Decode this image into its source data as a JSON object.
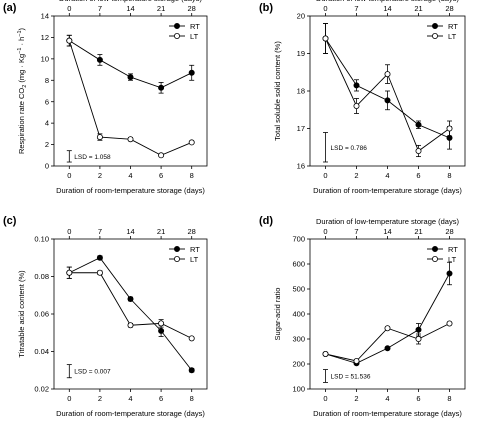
{
  "chart_data": [
    {
      "panel_label": "(a)",
      "type": "line",
      "top_xlabel": "Duration of low-temperature storage (days)",
      "top_ticks": [
        "0",
        "7",
        "14",
        "21",
        "28"
      ],
      "xlabel": "Duration of room-temperature storage (days)",
      "x_ticks": [
        "0",
        "2",
        "4",
        "6",
        "8"
      ],
      "x": [
        0,
        2,
        4,
        6,
        8
      ],
      "xlim": [
        -1,
        9
      ],
      "ylabel": "Respiration rate CO",
      "ylabel_sub": "2",
      "ylabel_unit": " (mg · Kg",
      "ylabel_sup1": "−1",
      "ylabel_mid": " · h",
      "ylabel_sup2": "−1",
      "ylabel_end": ")",
      "ylim": [
        0,
        14
      ],
      "y_ticks": [
        "0",
        "2",
        "4",
        "6",
        "8",
        "10",
        "12",
        "14"
      ],
      "y_tick_values": [
        0,
        2,
        4,
        6,
        8,
        10,
        12,
        14
      ],
      "legend_position": "top-right",
      "series": [
        {
          "name": "RT",
          "marker": "filled",
          "values": [
            11.7,
            9.9,
            8.3,
            7.3,
            8.7
          ],
          "errors": [
            0.5,
            0.5,
            0.3,
            0.5,
            0.7
          ]
        },
        {
          "name": "LT",
          "marker": "open",
          "values": [
            11.7,
            2.7,
            2.5,
            1.0,
            2.2
          ],
          "errors": [
            0.5,
            0.3,
            0.15,
            0.1,
            0.1
          ]
        }
      ],
      "lsd": {
        "label": "LSD = 1.058",
        "x": 0,
        "center": 0.9,
        "half": 0.53
      }
    },
    {
      "panel_label": "(b)",
      "type": "line",
      "top_xlabel": "Duration of low-temperature storage (days)",
      "top_ticks": [
        "0",
        "7",
        "14",
        "21",
        "28"
      ],
      "xlabel": "Duration of room-temperature storage (days)",
      "x_ticks": [
        "0",
        "2",
        "4",
        "6",
        "8"
      ],
      "x": [
        0,
        2,
        4,
        6,
        8
      ],
      "xlim": [
        -1,
        9
      ],
      "ylabel": "Total soluble solid content (%)",
      "ylim": [
        16,
        20
      ],
      "y_ticks": [
        "16",
        "17",
        "18",
        "19",
        "20"
      ],
      "y_tick_values": [
        16,
        17,
        18,
        19,
        20
      ],
      "legend_position": "top-right",
      "series": [
        {
          "name": "RT",
          "marker": "filled",
          "values": [
            19.4,
            18.15,
            17.75,
            17.1,
            16.75
          ],
          "errors": [
            0.4,
            0.15,
            0.25,
            0.1,
            0.3
          ]
        },
        {
          "name": "LT",
          "marker": "open",
          "values": [
            19.4,
            17.6,
            18.45,
            16.4,
            17.0
          ],
          "errors": [
            0.4,
            0.2,
            0.25,
            0.15,
            0.2
          ]
        }
      ],
      "lsd": {
        "label": "LSD = 0.786",
        "x": 0,
        "center": 16.5,
        "half": 0.393
      }
    },
    {
      "panel_label": "(c)",
      "type": "line",
      "top_xlabel": "",
      "top_ticks": [
        "0",
        "7",
        "14",
        "21",
        "28"
      ],
      "xlabel": "Duration of room-temperature storage (days)",
      "x_ticks": [
        "0",
        "2",
        "4",
        "6",
        "8"
      ],
      "x": [
        0,
        2,
        4,
        6,
        8
      ],
      "xlim": [
        -1,
        9
      ],
      "ylabel": "Titratable acid content (%)",
      "ylim": [
        0.02,
        0.1
      ],
      "y_ticks": [
        "0.02",
        "0.04",
        "0.06",
        "0.08",
        "0.10"
      ],
      "y_tick_values": [
        0.02,
        0.04,
        0.06,
        0.08,
        0.1
      ],
      "legend_position": "top-right",
      "series": [
        {
          "name": "RT",
          "marker": "filled",
          "values": [
            0.082,
            0.09,
            0.068,
            0.051,
            0.03
          ],
          "errors": [
            0.003,
            0.001,
            0.001,
            0.003,
            0.001
          ]
        },
        {
          "name": "LT",
          "marker": "open",
          "values": [
            0.082,
            0.082,
            0.054,
            0.055,
            0.047
          ],
          "errors": [
            0.003,
            0.001,
            0.001,
            0.002,
            0.0005
          ]
        }
      ],
      "lsd": {
        "label": "LSD = 0.007",
        "x": 0,
        "center": 0.0295,
        "half": 0.0035
      }
    },
    {
      "panel_label": "(d)",
      "type": "line",
      "top_xlabel": "Duration of low-temperature storage (days)",
      "top_ticks": [
        "0",
        "7",
        "14",
        "21",
        "28"
      ],
      "xlabel": "Duration of room-temperature storage (days)",
      "x_ticks": [
        "0",
        "2",
        "4",
        "6",
        "8"
      ],
      "x": [
        0,
        2,
        4,
        6,
        8
      ],
      "xlim": [
        -1,
        9
      ],
      "ylabel": "Sugar-acid ratio",
      "ylim": [
        100,
        700
      ],
      "y_ticks": [
        "100",
        "200",
        "300",
        "400",
        "500",
        "600",
        "700"
      ],
      "y_tick_values": [
        100,
        200,
        300,
        400,
        500,
        600,
        700
      ],
      "legend_position": "top-right",
      "series": [
        {
          "name": "RT",
          "marker": "filled",
          "values": [
            240,
            203,
            263,
            337,
            562
          ],
          "errors": [
            5,
            5,
            5,
            25,
            45
          ]
        },
        {
          "name": "LT",
          "marker": "open",
          "values": [
            240,
            212,
            343,
            300,
            362
          ],
          "errors": [
            5,
            5,
            5,
            20,
            5
          ]
        }
      ],
      "lsd": {
        "label": "LSD = 51.536",
        "x": 0,
        "center": 152,
        "half": 25.8
      }
    }
  ]
}
